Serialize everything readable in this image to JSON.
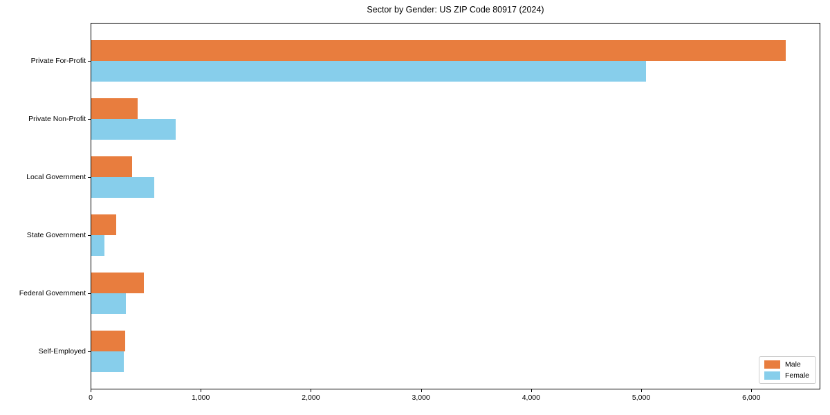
{
  "chart_data": {
    "type": "bar",
    "orientation": "horizontal",
    "title": "Sector by Gender: US ZIP Code 80917 (2024)",
    "categories": [
      "Private For-Profit",
      "Private Non-Profit",
      "Local Government",
      "State Government",
      "Federal Government",
      "Self-Employed"
    ],
    "series": [
      {
        "name": "Male",
        "color": "#e87d3e",
        "values": [
          6300,
          420,
          370,
          225,
          475,
          305
        ]
      },
      {
        "name": "Female",
        "color": "#87ceeb",
        "values": [
          5030,
          765,
          570,
          120,
          315,
          295
        ]
      }
    ],
    "xlabel": "",
    "ylabel": "",
    "xlim": [
      0,
      6620
    ],
    "xticks": [
      {
        "value": 0,
        "label": "0"
      },
      {
        "value": 1000,
        "label": "1,000"
      },
      {
        "value": 2000,
        "label": "2,000"
      },
      {
        "value": 3000,
        "label": "3,000"
      },
      {
        "value": 4000,
        "label": "4,000"
      },
      {
        "value": 5000,
        "label": "5,000"
      },
      {
        "value": 6000,
        "label": "6,000"
      }
    ],
    "grid": false,
    "legend": {
      "position": "lower right",
      "entries": [
        "Male",
        "Female"
      ]
    }
  }
}
